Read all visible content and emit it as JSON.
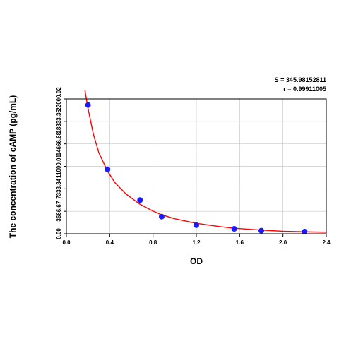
{
  "stats": {
    "s_text": "S = 345.98152811",
    "r_text": "r = 0.99911005"
  },
  "colors": {
    "curve": "#ff0000",
    "points": "#1a1aff",
    "grid": "#c8c8c8",
    "axis": "#000000"
  },
  "chart_data": {
    "type": "scatter",
    "title": "",
    "xlabel": "OD",
    "ylabel": "The concentration of cAMP (pg/mL)",
    "xlim": [
      0,
      2.4
    ],
    "ylim": [
      0,
      22000.02
    ],
    "x_ticks": [
      0.0,
      0.4,
      0.8,
      1.2,
      1.6,
      2.0,
      2.4
    ],
    "x_tick_labels": [
      "0.0",
      "0.4",
      "0.8",
      "1.2",
      "1.6",
      "2.0",
      "2.4"
    ],
    "y_ticks": [
      0,
      3666.67,
      7333.34,
      11000.01,
      14666.68,
      18333.35,
      22000.02
    ],
    "y_tick_labels": [
      "0.00",
      "3666.67",
      "7333.34",
      "11000.01",
      "14666.68",
      "18333.35",
      "22000.02"
    ],
    "grid": true,
    "series": [
      {
        "type": "scatter",
        "x": [
          0.2,
          0.38,
          0.68,
          0.88,
          1.2,
          1.55,
          1.8,
          2.2
        ],
        "y": [
          21000,
          10500,
          5500,
          2800,
          1400,
          800,
          500,
          350
        ]
      },
      {
        "type": "line",
        "x": [
          0.17,
          0.2,
          0.25,
          0.3,
          0.38,
          0.45,
          0.55,
          0.68,
          0.8,
          0.88,
          1.0,
          1.2,
          1.4,
          1.55,
          1.8,
          2.0,
          2.2,
          2.4
        ],
        "y": [
          23500,
          20400,
          16200,
          13200,
          10200,
          8300,
          6500,
          4800,
          3700,
          3100,
          2450,
          1700,
          1200,
          900,
          600,
          420,
          320,
          250
        ]
      }
    ]
  }
}
